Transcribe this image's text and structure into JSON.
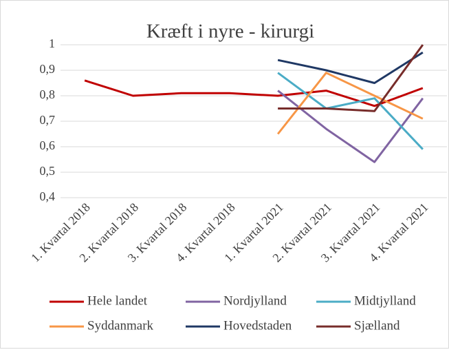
{
  "chart_data": {
    "type": "line",
    "title": "Kræft i nyre - kirurgi",
    "categories": [
      "1. Kvartal 2018",
      "2. Kvartal 2018",
      "3. Kvartal 2018",
      "4. Kvartal 2018",
      "1. Kvartal 2021",
      "2. Kvartal 2021",
      "3. Kvartal 2021",
      "4. Kvartal 2021"
    ],
    "series": [
      {
        "name": "Hele landet",
        "color": "#c00000",
        "values": [
          0.86,
          0.8,
          0.81,
          0.81,
          0.8,
          0.82,
          0.76,
          0.83
        ]
      },
      {
        "name": "Nordjylland",
        "color": "#8064a2",
        "values": [
          null,
          null,
          null,
          null,
          0.82,
          0.67,
          0.54,
          0.79
        ]
      },
      {
        "name": "Midtjylland",
        "color": "#4bacc6",
        "values": [
          null,
          null,
          null,
          null,
          0.89,
          0.75,
          0.79,
          0.59
        ]
      },
      {
        "name": "Syddanmark",
        "color": "#f79646",
        "values": [
          null,
          null,
          null,
          null,
          0.65,
          0.89,
          0.8,
          0.71
        ]
      },
      {
        "name": "Hovedstaden",
        "color": "#1f3864",
        "values": [
          null,
          null,
          null,
          null,
          0.94,
          0.9,
          0.85,
          0.97
        ]
      },
      {
        "name": "Sjælland",
        "color": "#772c2a",
        "values": [
          null,
          null,
          null,
          null,
          0.75,
          0.75,
          0.74,
          1.0
        ]
      }
    ],
    "ylim": [
      0.4,
      1
    ],
    "yticks": [
      {
        "value": 0.4,
        "label": "0,4"
      },
      {
        "value": 0.5,
        "label": "0,5"
      },
      {
        "value": 0.6,
        "label": "0,6"
      },
      {
        "value": 0.7,
        "label": "0,7"
      },
      {
        "value": 0.8,
        "label": "0,8"
      },
      {
        "value": 0.9,
        "label": "0,9"
      },
      1
    ],
    "grid": true,
    "legend": "bottom"
  }
}
